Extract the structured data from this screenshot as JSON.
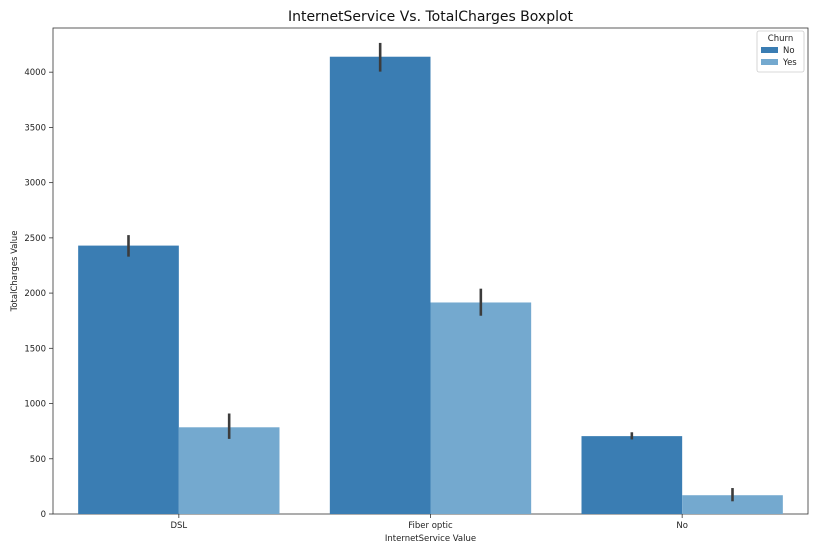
{
  "chart_data": {
    "type": "bar",
    "title": "InternetService Vs. TotalCharges Boxplot",
    "xlabel": "InternetService Value",
    "ylabel": "TotalCharges Value",
    "categories": [
      "DSL",
      "Fiber optic",
      "No"
    ],
    "ylim": [
      0,
      4400
    ],
    "yticks": [
      0,
      500,
      1000,
      1500,
      2000,
      2500,
      3000,
      3500,
      4000
    ],
    "legend": {
      "title": "Churn",
      "placement": "top-right"
    },
    "series": [
      {
        "name": "No",
        "color": "#3a7db3",
        "values": [
          2430,
          4140,
          705
        ],
        "error_low": [
          2330,
          4005,
          675
        ],
        "error_high": [
          2525,
          4265,
          740
        ]
      },
      {
        "name": "Yes",
        "color": "#74a9cf",
        "values": [
          785,
          1915,
          170
        ],
        "error_low": [
          680,
          1795,
          115
        ],
        "error_high": [
          910,
          2040,
          235
        ]
      }
    ],
    "grid": false
  }
}
